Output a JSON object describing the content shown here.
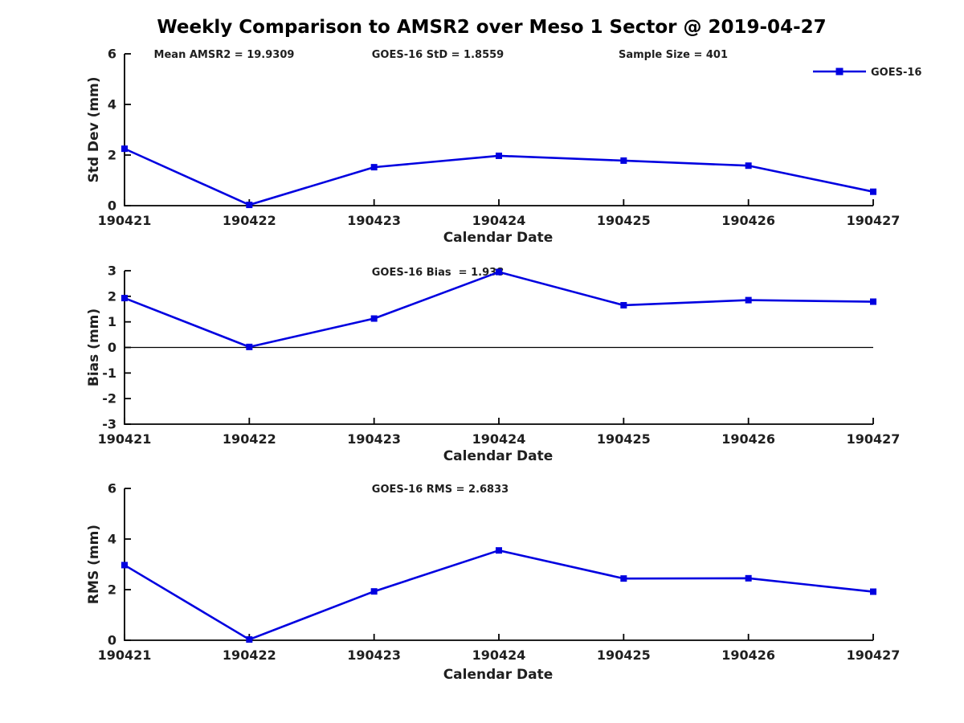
{
  "title": "Weekly Comparison to AMSR2 over Meso 1 Sector @ 2019-04-27",
  "legend": {
    "label": "GOES-16"
  },
  "colors": {
    "line": "#0000E0",
    "axis": "#000000",
    "text": "#1F1F1F"
  },
  "chart_data": [
    {
      "type": "line",
      "id": "std-dev",
      "ylabel": "Std Dev (mm)",
      "xlabel": "Calendar Date",
      "categories": [
        "190421",
        "190422",
        "190423",
        "190424",
        "190425",
        "190426",
        "190427"
      ],
      "yticks": [
        0,
        2,
        4,
        6
      ],
      "ylim": [
        0,
        6
      ],
      "grid": false,
      "legend_position": "upper right",
      "annotations": [
        "Mean AMSR2 = 19.9309",
        "GOES-16 StD = 1.8559",
        "Sample Size = 401"
      ],
      "series": [
        {
          "name": "GOES-16",
          "values": [
            2.25,
            0.03,
            1.52,
            1.97,
            1.78,
            1.58,
            0.55
          ]
        }
      ]
    },
    {
      "type": "line",
      "id": "bias",
      "ylabel": "Bias (mm)",
      "xlabel": "Calendar Date",
      "categories": [
        "190421",
        "190422",
        "190423",
        "190424",
        "190425",
        "190426",
        "190427"
      ],
      "yticks": [
        3,
        2,
        1,
        0,
        -1,
        -2,
        -3
      ],
      "ylim": [
        -3,
        3
      ],
      "grid": false,
      "zero_line": true,
      "annotations": [
        "GOES-16 Bias  = 1.938"
      ],
      "series": [
        {
          "name": "GOES-16",
          "values": [
            1.93,
            0.02,
            1.13,
            2.95,
            1.65,
            1.85,
            1.79
          ]
        }
      ]
    },
    {
      "type": "line",
      "id": "rms",
      "ylabel": "RMS (mm)",
      "xlabel": "Calendar Date",
      "categories": [
        "190421",
        "190422",
        "190423",
        "190424",
        "190425",
        "190426",
        "190427"
      ],
      "yticks": [
        0,
        2,
        4,
        6
      ],
      "ylim": [
        0,
        6
      ],
      "grid": false,
      "annotations": [
        "GOES-16 RMS = 2.6833"
      ],
      "series": [
        {
          "name": "GOES-16",
          "values": [
            2.97,
            0.03,
            1.93,
            3.55,
            2.44,
            2.45,
            1.92
          ]
        }
      ]
    }
  ]
}
